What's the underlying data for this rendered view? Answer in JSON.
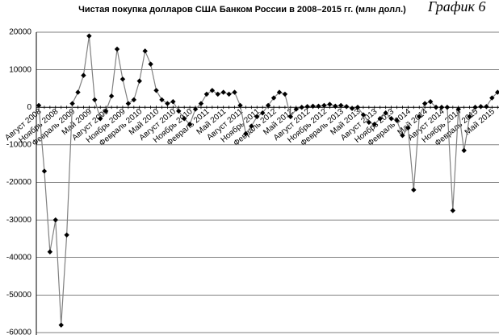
{
  "chart_data": {
    "type": "line",
    "title": "Чистая покупка долларов США Банком России в 2008–2015 гг. (млн долл.)",
    "note": "График 6",
    "categories": [
      "Август 2008",
      null,
      null,
      "Ноябрь 2008",
      null,
      null,
      "Февраль 2009",
      null,
      null,
      "Май 2009",
      null,
      null,
      "Август 2009",
      null,
      null,
      "Ноябрь 2009",
      null,
      null,
      "Февраль 2010",
      null,
      null,
      "Май 2010",
      null,
      null,
      "Август 2010",
      null,
      null,
      "Ноябрь 2010",
      null,
      null,
      "Февраль 2011",
      null,
      null,
      "Май 2011",
      null,
      null,
      "Август 2011",
      null,
      null,
      "Ноябрь 2011",
      null,
      null,
      "Февраль 2012",
      null,
      null,
      "Май 2012",
      null,
      null,
      "Август 2012",
      null,
      null,
      "Ноябрь 2012",
      null,
      null,
      "Февраль 2013",
      null,
      null,
      "Май 2013",
      null,
      null,
      "Август 2013",
      null,
      null,
      "Ноябрь 2013",
      null,
      null,
      "Февраль 2014",
      null,
      null,
      "Май 2014",
      null,
      null,
      "Август 2014",
      null,
      null,
      "Ноябрь 2014",
      null,
      null,
      "Февраль 2015",
      null,
      null,
      "Май 2015",
      null
    ],
    "series": [
      {
        "name": "Чистая покупка",
        "color": "#808080",
        "marker_color": "#000000",
        "values": [
          500,
          -17000,
          -38500,
          -30000,
          -58000,
          -34000,
          1000,
          4000,
          8500,
          19000,
          2000,
          -3000,
          -1000,
          3000,
          15500,
          7500,
          1000,
          2000,
          7000,
          15000,
          11500,
          4500,
          2000,
          1000,
          1500,
          -1000,
          -3000,
          -4500,
          -500,
          1000,
          3500,
          4500,
          3500,
          4000,
          3500,
          4000,
          500,
          -7000,
          -5000,
          -2500,
          -1500,
          500,
          2500,
          4000,
          3500,
          -2500,
          -500,
          0,
          200,
          300,
          300,
          500,
          800,
          300,
          500,
          200,
          -300,
          0,
          -2000,
          -4000,
          -4500,
          -3000,
          -1500,
          -3000,
          -3500,
          -7500,
          -5500,
          -22000,
          -2500,
          1000,
          1500,
          0,
          0,
          0,
          -27500,
          -500,
          -11500,
          -2500,
          0,
          200,
          200,
          2500,
          4000
        ]
      }
    ],
    "ylim": [
      -60000,
      20000
    ],
    "yticks": [
      -60000,
      -50000,
      -40000,
      -30000,
      -20000,
      -10000,
      0,
      10000,
      20000
    ],
    "grid": true
  }
}
